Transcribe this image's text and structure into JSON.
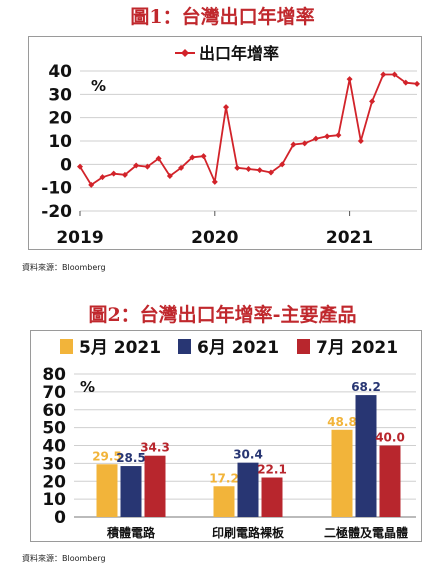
{
  "figures": {
    "fig1_title": "圖1：台灣出口年增率",
    "fig2_title": "圖2：台灣出口年增率-主要產品",
    "source_1": "資料來源：Bloomberg",
    "source_2": "資料來源：Bloomberg"
  },
  "colors": {
    "title_red": "#c0282d",
    "line_red": "#d2232a",
    "bar_yellow": "#f2b43a",
    "bar_navy": "#283673",
    "bar_red": "#b8262d",
    "grid": "#cfcfcf"
  },
  "chart_data": [
    {
      "type": "line",
      "title": "圖1：台灣出口年增率",
      "legend": "出口年增率",
      "legend_position": "top-center",
      "unit": "%",
      "ylim": [
        -20,
        40
      ],
      "yticks": [
        "40",
        "30",
        "20",
        "10",
        "0",
        "-10",
        "-20"
      ],
      "ytick_values": [
        40,
        30,
        20,
        10,
        0,
        -10,
        -20
      ],
      "xtick_labels": [
        "2019",
        "2020",
        "2021"
      ],
      "xtick_index": [
        0,
        12,
        24
      ],
      "grid": true,
      "series": [
        {
          "name": "出口年增率",
          "values": [
            -1,
            -8.8,
            -5.5,
            -4,
            -4.5,
            -0.5,
            -1,
            2.5,
            -5,
            -1.5,
            3,
            3.5,
            -7.5,
            24.5,
            -1.5,
            -2,
            -2.5,
            -3.5,
            0,
            8.5,
            9,
            11,
            12,
            12.5,
            36.5,
            10,
            27,
            38.5,
            38.5,
            35,
            34.5
          ]
        }
      ]
    },
    {
      "type": "bar",
      "title": "圖2：台灣出口年增率-主要產品",
      "unit": "%",
      "ylim": [
        0,
        80
      ],
      "yticks": [
        "80",
        "70",
        "60",
        "50",
        "40",
        "30",
        "20",
        "10",
        "0"
      ],
      "ytick_values": [
        80,
        70,
        60,
        50,
        40,
        30,
        20,
        10,
        0
      ],
      "legend_position": "top",
      "grid": true,
      "categories": [
        "積體電路",
        "印刷電路裸板",
        "二極體及電晶體"
      ],
      "series": [
        {
          "name": "5月 2021",
          "values": [
            29.5,
            17.2,
            48.8
          ],
          "labels": [
            "29.5",
            "17.2",
            "48.8"
          ]
        },
        {
          "name": "6月 2021",
          "values": [
            28.5,
            30.4,
            68.2
          ],
          "labels": [
            "28.5",
            "30.4",
            "68.2"
          ]
        },
        {
          "name": "7月 2021",
          "values": [
            34.3,
            22.1,
            40.0
          ],
          "labels": [
            "34.3",
            "22.1",
            "40.0"
          ]
        }
      ]
    }
  ]
}
